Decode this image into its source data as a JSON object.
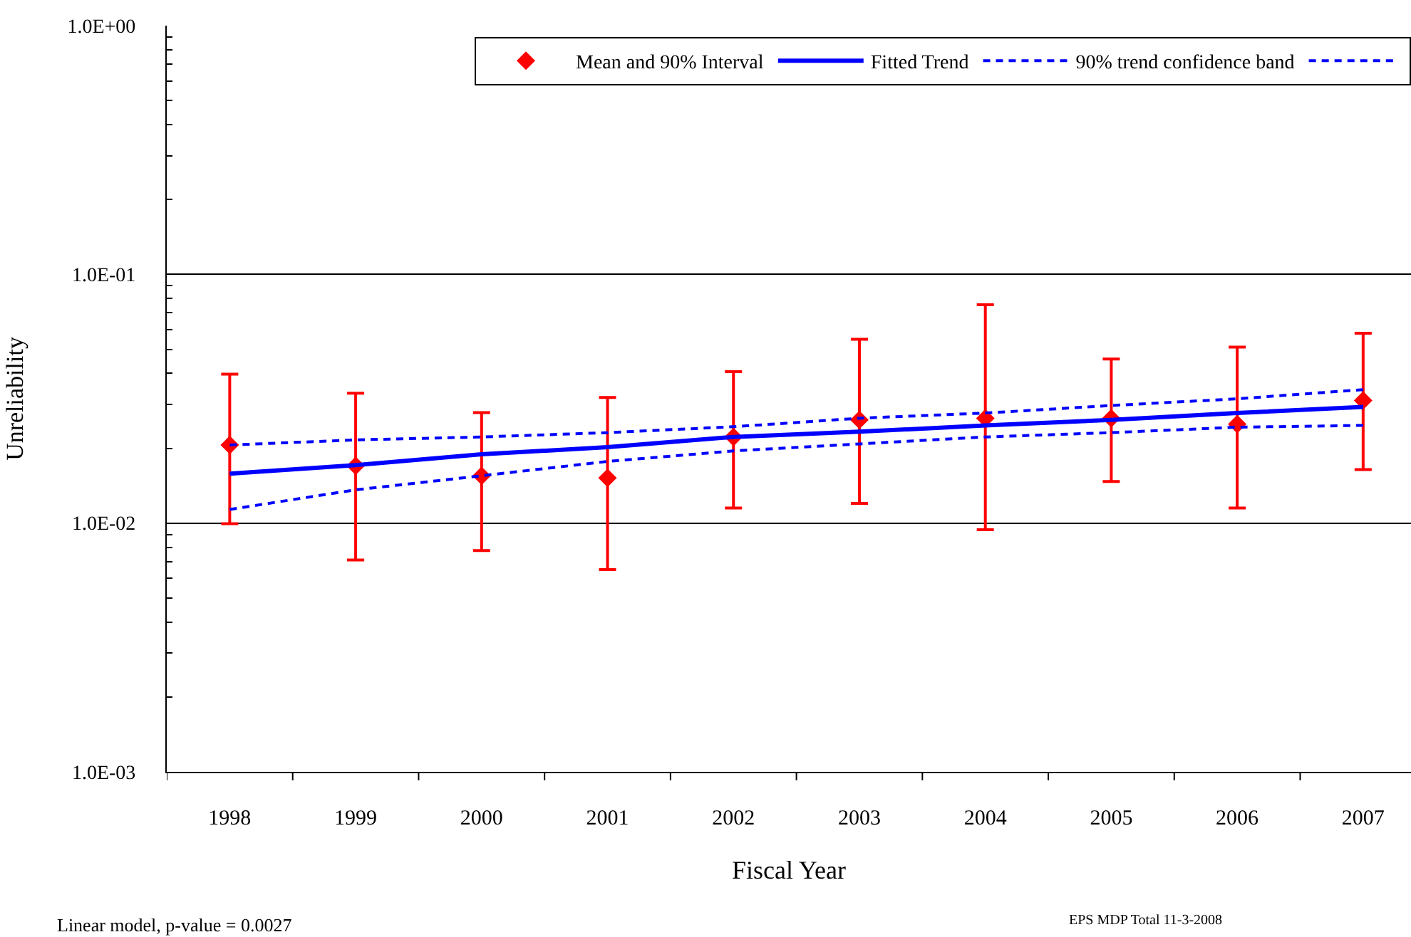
{
  "chart_data": {
    "type": "scatter",
    "xlabel": "Fiscal Year",
    "ylabel": "Unreliability",
    "categories": [
      "1998",
      "1999",
      "2000",
      "2001",
      "2002",
      "2003",
      "2004",
      "2005",
      "2006",
      "2007"
    ],
    "series": [
      {
        "name": "Mean and 90% Interval",
        "color": "#ff0000",
        "marker": "diamond",
        "values": [
          0.0206,
          0.017,
          0.0155,
          0.0152,
          0.0222,
          0.026,
          0.0264,
          0.0264,
          0.025,
          0.0311
        ],
        "errors": [
          [
            0.00995,
            0.0397
          ],
          [
            0.0071,
            0.0333
          ],
          [
            0.00775,
            0.0278
          ],
          [
            0.0065,
            0.032
          ],
          [
            0.0115,
            0.0406
          ],
          [
            0.012,
            0.0548
          ],
          [
            0.0094,
            0.0755
          ],
          [
            0.0147,
            0.0457
          ],
          [
            0.0115,
            0.051
          ],
          [
            0.0164,
            0.058
          ]
        ]
      },
      {
        "name": "Fitted Trend",
        "type": "line",
        "color": "#0000ff",
        "line_style": "solid",
        "values": [
          0.0158,
          0.0171,
          0.0189,
          0.0202,
          0.0222,
          0.0233,
          0.0247,
          0.026,
          0.0277,
          0.0293
        ]
      },
      {
        "name": "90% trend confidence band",
        "type": "line",
        "color": "#0000ff",
        "line_style": "dashed",
        "values": [
          0.0206,
          0.0216,
          0.0222,
          0.0231,
          0.0244,
          0.0264,
          0.0277,
          0.0297,
          0.0316,
          0.0344
        ]
      },
      {
        "type": "line",
        "color": "#0000ff",
        "line_style": "dashed",
        "values": [
          0.01135,
          0.0136,
          0.0155,
          0.0177,
          0.0195,
          0.0208,
          0.0222,
          0.0231,
          0.0243,
          0.0247
        ]
      }
    ],
    "log": true,
    "ylim": [
      0.001,
      1
    ],
    "yticks": [
      {
        "value": 0.001,
        "label": "1.0E-03"
      },
      {
        "value": 0.01,
        "label": "1.0E-02"
      },
      {
        "value": 0.1,
        "label": "1.0E-01"
      },
      {
        "value": 1,
        "label": "1.0E+00"
      }
    ],
    "grid": "y",
    "legend": "top right",
    "annotations": [
      "Linear model, p-value = 0.0027",
      "EPS MDP Total 11-3-2008"
    ]
  }
}
